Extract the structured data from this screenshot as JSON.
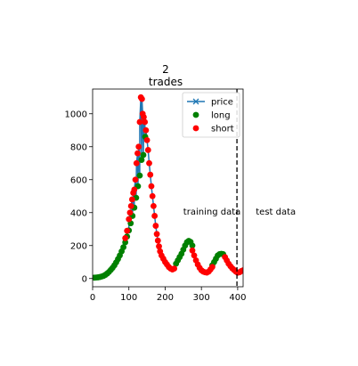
{
  "chart_data": {
    "type": "scatter",
    "title": "2",
    "subtitle": "trades",
    "xlabel": "",
    "ylabel": "",
    "xlim": [
      0,
      415
    ],
    "ylim": [
      -50,
      1150
    ],
    "xticks": [
      0,
      100,
      200,
      300,
      400
    ],
    "yticks": [
      0,
      200,
      400,
      600,
      800,
      1000
    ],
    "grid": false,
    "legend_position": "top-right",
    "legend": [
      "price",
      "long",
      "short"
    ],
    "colors": {
      "price": "#1f77b4",
      "long": "#008000",
      "short": "#ff0000"
    },
    "annotations": [
      {
        "text": "training data",
        "x": 250,
        "y": 405
      },
      {
        "text": "test data",
        "x": 450,
        "y": 405
      }
    ],
    "split_line_x": 398,
    "series": [
      {
        "name": "long",
        "points": [
          [
            5,
            5
          ],
          [
            10,
            6
          ],
          [
            15,
            7
          ],
          [
            20,
            9
          ],
          [
            25,
            12
          ],
          [
            30,
            16
          ],
          [
            35,
            22
          ],
          [
            40,
            30
          ],
          [
            45,
            40
          ],
          [
            50,
            52
          ],
          [
            55,
            65
          ],
          [
            60,
            80
          ],
          [
            65,
            98
          ],
          [
            70,
            118
          ],
          [
            75,
            140
          ],
          [
            80,
            165
          ],
          [
            85,
            190
          ],
          [
            90,
            220
          ],
          [
            95,
            255
          ],
          [
            100,
            292
          ],
          [
            105,
            335
          ],
          [
            110,
            380
          ],
          [
            115,
            430
          ],
          [
            120,
            490
          ],
          [
            125,
            560
          ],
          [
            130,
            625
          ],
          [
            135,
            720
          ],
          [
            140,
            750
          ],
          [
            145,
            860
          ],
          [
            230,
            90
          ],
          [
            235,
            110
          ],
          [
            240,
            130
          ],
          [
            245,
            150
          ],
          [
            250,
            175
          ],
          [
            255,
            200
          ],
          [
            260,
            220
          ],
          [
            265,
            228
          ],
          [
            270,
            222
          ],
          [
            275,
            200
          ],
          [
            330,
            80
          ],
          [
            335,
            100
          ],
          [
            340,
            120
          ],
          [
            345,
            140
          ],
          [
            350,
            148
          ],
          [
            355,
            150
          ],
          [
            360,
            148
          ]
        ]
      },
      {
        "name": "short",
        "points": [
          [
            90,
            245
          ],
          [
            95,
            290
          ],
          [
            100,
            360
          ],
          [
            103,
            400
          ],
          [
            106,
            440
          ],
          [
            109,
            480
          ],
          [
            112,
            520
          ],
          [
            115,
            540
          ],
          [
            118,
            600
          ],
          [
            121,
            700
          ],
          [
            124,
            760
          ],
          [
            127,
            800
          ],
          [
            130,
            950
          ],
          [
            133,
            1100
          ],
          [
            136,
            1090
          ],
          [
            138,
            1000
          ],
          [
            141,
            980
          ],
          [
            144,
            950
          ],
          [
            147,
            900
          ],
          [
            150,
            840
          ],
          [
            153,
            780
          ],
          [
            156,
            700
          ],
          [
            159,
            630
          ],
          [
            162,
            560
          ],
          [
            165,
            500
          ],
          [
            168,
            440
          ],
          [
            171,
            380
          ],
          [
            174,
            320
          ],
          [
            177,
            270
          ],
          [
            180,
            230
          ],
          [
            183,
            195
          ],
          [
            186,
            165
          ],
          [
            190,
            140
          ],
          [
            195,
            120
          ],
          [
            200,
            100
          ],
          [
            205,
            85
          ],
          [
            210,
            70
          ],
          [
            215,
            60
          ],
          [
            220,
            55
          ],
          [
            225,
            60
          ],
          [
            275,
            170
          ],
          [
            280,
            140
          ],
          [
            285,
            110
          ],
          [
            290,
            85
          ],
          [
            295,
            65
          ],
          [
            300,
            50
          ],
          [
            305,
            42
          ],
          [
            310,
            38
          ],
          [
            315,
            36
          ],
          [
            320,
            42
          ],
          [
            325,
            55
          ],
          [
            330,
            70
          ],
          [
            365,
            130
          ],
          [
            370,
            110
          ],
          [
            375,
            90
          ],
          [
            380,
            75
          ],
          [
            385,
            62
          ],
          [
            390,
            52
          ],
          [
            395,
            42
          ],
          [
            400,
            35
          ],
          [
            405,
            38
          ],
          [
            410,
            45
          ],
          [
            415,
            50
          ]
        ]
      }
    ]
  }
}
